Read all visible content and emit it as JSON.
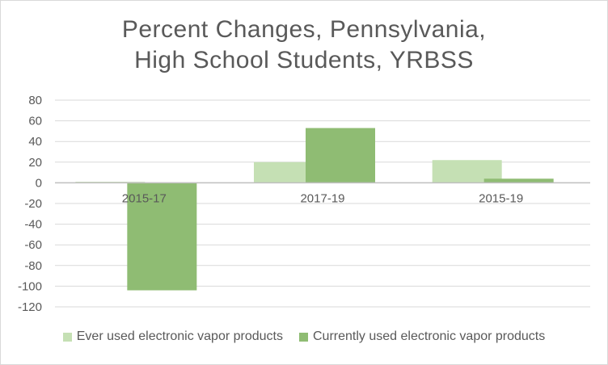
{
  "chart_data": {
    "type": "bar",
    "title": [
      "Percent Changes, Pennsylvania,",
      "High School Students, YRBSS"
    ],
    "categories": [
      "2015-17",
      "2017-19",
      "2015-19"
    ],
    "series": [
      {
        "name": "Ever used electronic vapor products",
        "values": [
          1,
          20,
          22
        ],
        "color": "#c5e0b4"
      },
      {
        "name": "Currently used electronic vapor products",
        "values": [
          -104,
          53,
          4
        ],
        "color": "#8fbc73"
      }
    ],
    "ylim": [
      -120,
      80
    ],
    "yticks": [
      "80",
      "60",
      "40",
      "20",
      "0",
      "-20",
      "-40",
      "-60",
      "-80",
      "-100",
      "-120"
    ],
    "grid": true,
    "legend_position": "bottom"
  }
}
